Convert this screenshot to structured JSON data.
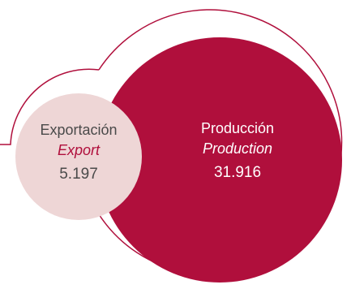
{
  "chart_data": {
    "type": "bubble",
    "bubbles": [
      {
        "name": "Exportación",
        "subtitle": "Export",
        "value": 5.197,
        "value_label": "5.197",
        "color": "#eed6d6",
        "text_color": "#4a4a4a",
        "subtitle_color": "#b00f3c"
      },
      {
        "name": "Producción",
        "subtitle": "Production",
        "value": 31.916,
        "value_label": "31.916",
        "color": "#b00f3c",
        "text_color": "#ffffff",
        "subtitle_color": "#ffffff"
      }
    ],
    "outline_color": "#b00f3c"
  }
}
